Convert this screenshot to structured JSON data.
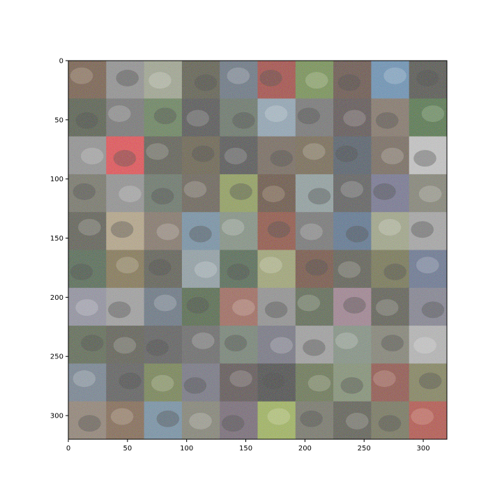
{
  "figure": {
    "image_description_note": "",
    "grid": {
      "rows": 10,
      "cols": 10
    },
    "axes": {
      "x_range": [
        0,
        320
      ],
      "y_range": [
        0,
        320
      ],
      "y_inverted": true,
      "x_ticks": [
        0,
        50,
        100,
        150,
        200,
        250,
        300
      ],
      "y_ticks": [
        0,
        50,
        100,
        150,
        200,
        250,
        300
      ],
      "x_tick_labels": [
        "0",
        "50",
        "100",
        "150",
        "200",
        "250",
        "300"
      ],
      "y_tick_labels": [
        "0",
        "50",
        "100",
        "150",
        "200",
        "250",
        "300"
      ]
    },
    "tile_palette": [
      [
        "#6b4a2a",
        "#8a8a8a",
        "#9aa08a",
        "#4b4a30",
        "#5b6a7a",
        "#a02a1e",
        "#6a8a3a",
        "#5a3a2a",
        "#5a8ab0",
        "#3a3a30"
      ],
      [
        "#3e4a2e",
        "#6a6a6a",
        "#5a7a4a",
        "#3a3a3a",
        "#5a6a5a",
        "#8aa0b0",
        "#6a6a6a",
        "#4a3a3a",
        "#7a6a5a",
        "#3a6a2a"
      ],
      [
        "#8a8a8a",
        "#e0303a",
        "#4a4a3a",
        "#5a5030",
        "#3a3a3a",
        "#6a5a4a",
        "#6a5a3a",
        "#3a4a5a",
        "#6a5a4a",
        "#c0c0c0"
      ],
      [
        "#6a6a5a",
        "#8a8a8a",
        "#5a6a5a",
        "#5a5040",
        "#8a9a4a",
        "#5a3a1a",
        "#8a9a9a",
        "#4a4a4a",
        "#6a6a8a",
        "#7a7a6a"
      ],
      [
        "#4a4a3a",
        "#b0a080",
        "#7a6a5a",
        "#6a8aa0",
        "#7a8a7a",
        "#8a3a1a",
        "#6a6a6a",
        "#4a6a8a",
        "#9aa080",
        "#a0a0a0"
      ],
      [
        "#3a5a3a",
        "#7a6a3a",
        "#4a4a3a",
        "#8a9aa0",
        "#3a5a3a",
        "#9aa06a",
        "#6a3a1a",
        "#4a4a3a",
        "#6a6a3a",
        "#5a6a8a"
      ],
      [
        "#8a8a9a",
        "#9a9a9a",
        "#5a6a7a",
        "#3a5a2a",
        "#9a5a4a",
        "#8a8a8a",
        "#4a5a3a",
        "#9a7a8a",
        "#4a4a3a",
        "#7a7a8a"
      ],
      [
        "#4a5a3a",
        "#4a4a3a",
        "#4a4a4a",
        "#5a5a5a",
        "#6a7a6a",
        "#6a6a7a",
        "#9a9a9a",
        "#7a8a7a",
        "#7a7a6a",
        "#b0b0b0"
      ],
      [
        "#6a7a8a",
        "#4a4a4a",
        "#6a7a3a",
        "#6a6a7a",
        "#4a3a3a",
        "#2a2a2a",
        "#5a6a3a",
        "#7a8a6a",
        "#8a3a2a",
        "#7a7a4a"
      ],
      [
        "#8a7a6a",
        "#7a5a3a",
        "#6a8aa0",
        "#7a7a6a",
        "#6a5a6a",
        "#9ab04a",
        "#6a6a5a",
        "#4a4a3a",
        "#6a6a4a",
        "#b03a2a"
      ]
    ]
  }
}
